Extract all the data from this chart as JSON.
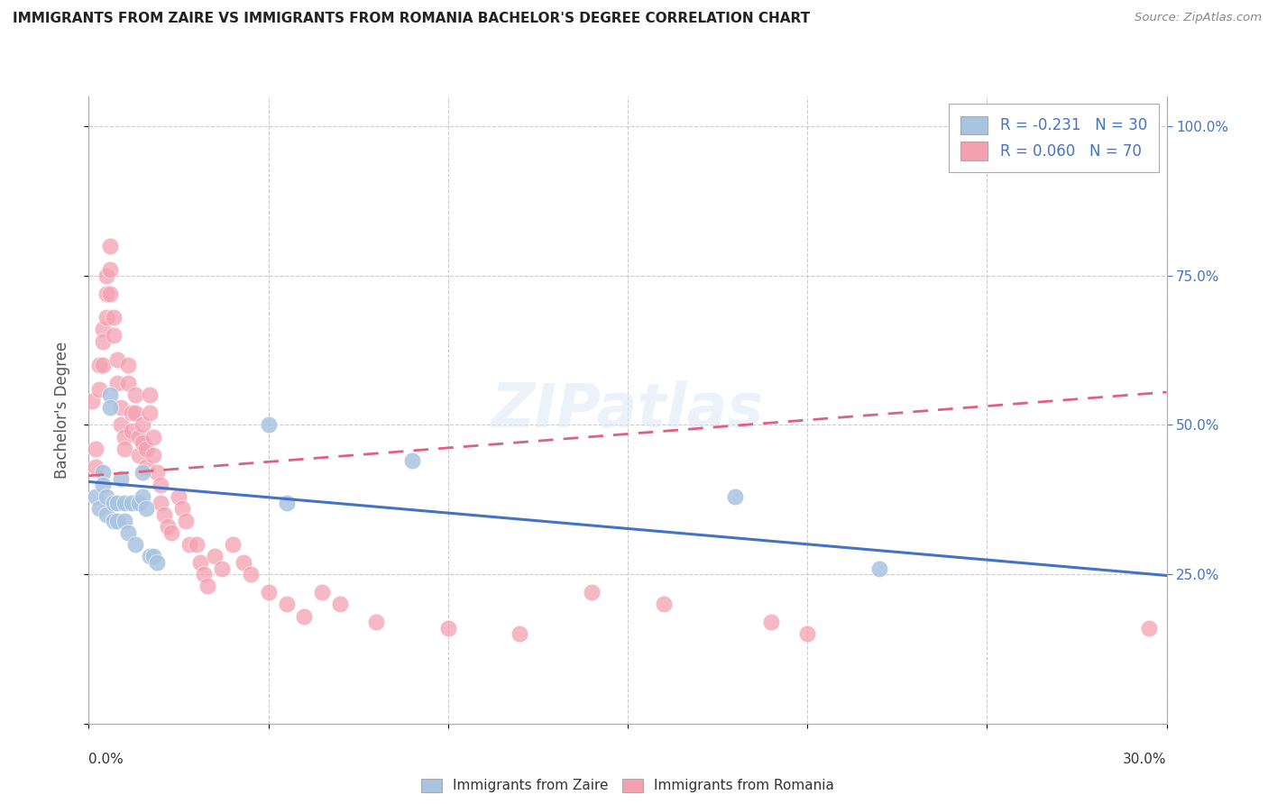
{
  "title": "IMMIGRANTS FROM ZAIRE VS IMMIGRANTS FROM ROMANIA BACHELOR'S DEGREE CORRELATION CHART",
  "source": "Source: ZipAtlas.com",
  "xlabel_bottom": [
    "Immigrants from Zaire",
    "Immigrants from Romania"
  ],
  "ylabel": "Bachelor's Degree",
  "xlim": [
    0.0,
    0.3
  ],
  "ylim": [
    0.0,
    1.05
  ],
  "ytick_values": [
    0.0,
    0.25,
    0.5,
    0.75,
    1.0
  ],
  "xtick_labels": [
    "0.0%",
    "",
    "",
    "",
    "",
    "",
    "30.0%"
  ],
  "xtick_values": [
    0.0,
    0.05,
    0.1,
    0.15,
    0.2,
    0.25,
    0.3
  ],
  "right_ytick_labels": [
    "100.0%",
    "75.0%",
    "50.0%",
    "25.0%"
  ],
  "right_ytick_values": [
    1.0,
    0.75,
    0.5,
    0.25
  ],
  "legend_zaire": "R = -0.231   N = 30",
  "legend_romania": "R = 0.060   N = 70",
  "zaire_color": "#a8c4e0",
  "romania_color": "#f4a0b0",
  "zaire_line_color": "#4472c4",
  "romania_line_color": "#e06080",
  "background_color": "#ffffff",
  "grid_color": "#cccccc",
  "watermark": "ZIPatlas",
  "zaire_trend_x": [
    0.0,
    0.3
  ],
  "zaire_trend_y": [
    0.405,
    0.248
  ],
  "romania_trend_x": [
    0.0,
    0.3
  ],
  "romania_trend_y": [
    0.415,
    0.555
  ],
  "zaire_x": [
    0.002,
    0.003,
    0.004,
    0.004,
    0.005,
    0.005,
    0.006,
    0.006,
    0.007,
    0.007,
    0.008,
    0.008,
    0.009,
    0.01,
    0.01,
    0.011,
    0.012,
    0.013,
    0.014,
    0.015,
    0.015,
    0.016,
    0.017,
    0.018,
    0.019,
    0.05,
    0.055,
    0.09,
    0.18,
    0.22
  ],
  "zaire_y": [
    0.38,
    0.36,
    0.42,
    0.4,
    0.38,
    0.35,
    0.55,
    0.53,
    0.37,
    0.34,
    0.37,
    0.34,
    0.41,
    0.37,
    0.34,
    0.32,
    0.37,
    0.3,
    0.37,
    0.42,
    0.38,
    0.36,
    0.28,
    0.28,
    0.27,
    0.5,
    0.37,
    0.44,
    0.38,
    0.26
  ],
  "romania_x": [
    0.001,
    0.002,
    0.002,
    0.003,
    0.003,
    0.004,
    0.004,
    0.004,
    0.005,
    0.005,
    0.005,
    0.006,
    0.006,
    0.006,
    0.007,
    0.007,
    0.008,
    0.008,
    0.009,
    0.009,
    0.01,
    0.01,
    0.011,
    0.011,
    0.012,
    0.012,
    0.013,
    0.013,
    0.014,
    0.014,
    0.015,
    0.015,
    0.016,
    0.016,
    0.017,
    0.017,
    0.018,
    0.018,
    0.019,
    0.02,
    0.02,
    0.021,
    0.022,
    0.023,
    0.025,
    0.026,
    0.027,
    0.028,
    0.03,
    0.031,
    0.032,
    0.033,
    0.035,
    0.037,
    0.04,
    0.043,
    0.045,
    0.05,
    0.055,
    0.06,
    0.065,
    0.07,
    0.08,
    0.1,
    0.12,
    0.14,
    0.16,
    0.19,
    0.2,
    0.295
  ],
  "romania_y": [
    0.54,
    0.46,
    0.43,
    0.6,
    0.56,
    0.66,
    0.64,
    0.6,
    0.75,
    0.72,
    0.68,
    0.8,
    0.76,
    0.72,
    0.68,
    0.65,
    0.61,
    0.57,
    0.53,
    0.5,
    0.48,
    0.46,
    0.6,
    0.57,
    0.52,
    0.49,
    0.55,
    0.52,
    0.48,
    0.45,
    0.5,
    0.47,
    0.46,
    0.43,
    0.55,
    0.52,
    0.48,
    0.45,
    0.42,
    0.4,
    0.37,
    0.35,
    0.33,
    0.32,
    0.38,
    0.36,
    0.34,
    0.3,
    0.3,
    0.27,
    0.25,
    0.23,
    0.28,
    0.26,
    0.3,
    0.27,
    0.25,
    0.22,
    0.2,
    0.18,
    0.22,
    0.2,
    0.17,
    0.16,
    0.15,
    0.22,
    0.2,
    0.17,
    0.15,
    0.16
  ]
}
